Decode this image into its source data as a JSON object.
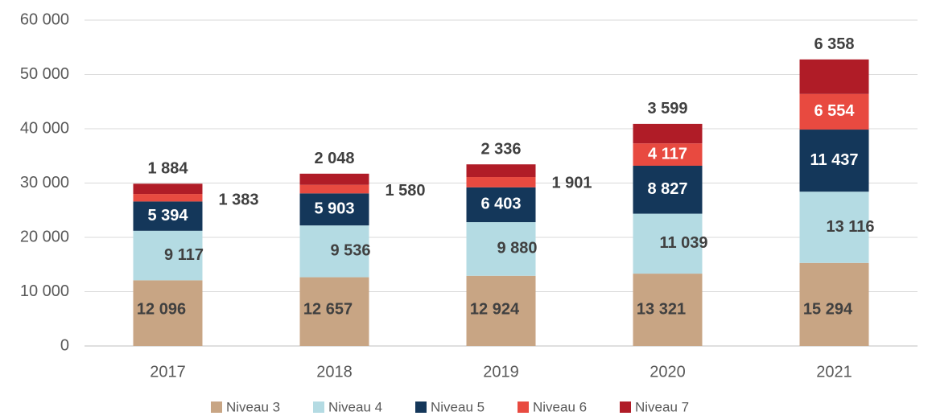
{
  "chart_data": {
    "type": "stacked_bar",
    "categories": [
      "2017",
      "2018",
      "2019",
      "2020",
      "2021"
    ],
    "series": [
      {
        "name": "Niveau 3",
        "color": "#c8a584",
        "values": [
          12096,
          12657,
          12924,
          13321,
          15294
        ],
        "value_labels": [
          "12 096",
          "12 657",
          "12 924",
          "13 321",
          "15 294"
        ]
      },
      {
        "name": "Niveau 4",
        "color": "#b4dbe3",
        "values": [
          9117,
          9536,
          9880,
          11039,
          13116
        ],
        "value_labels": [
          "9 117",
          "9 536",
          "9 880",
          "11 039",
          "13 116"
        ]
      },
      {
        "name": "Niveau 5",
        "color": "#14375a",
        "values": [
          5394,
          5903,
          6403,
          8827,
          11437
        ],
        "value_labels": [
          "5 394",
          "5 903",
          "6 403",
          "8 827",
          "11 437"
        ]
      },
      {
        "name": "Niveau 6",
        "color": "#e84a40",
        "values": [
          1383,
          1580,
          1901,
          4117,
          6554
        ],
        "value_labels": [
          "1 383",
          "1 580",
          "1 901",
          "4 117",
          "6 554"
        ]
      },
      {
        "name": "Niveau 7",
        "color": "#b01c27",
        "values": [
          1884,
          2048,
          2336,
          3599,
          6358
        ],
        "value_labels": [
          "1 884",
          "2 048",
          "2 336",
          "3 599",
          "6 358"
        ]
      }
    ],
    "ylim": [
      0,
      60000
    ],
    "yticks": [
      0,
      {
        "value": 10000,
        "label": "10 000"
      },
      {
        "value": 20000,
        "label": "20 000"
      },
      {
        "value": 30000,
        "label": "30 000"
      },
      {
        "value": 40000,
        "label": "40 000"
      },
      {
        "value": 50000,
        "label": "50 000"
      },
      {
        "value": 60000,
        "label": "60 000"
      }
    ],
    "grid": true,
    "legend": "bottom"
  }
}
